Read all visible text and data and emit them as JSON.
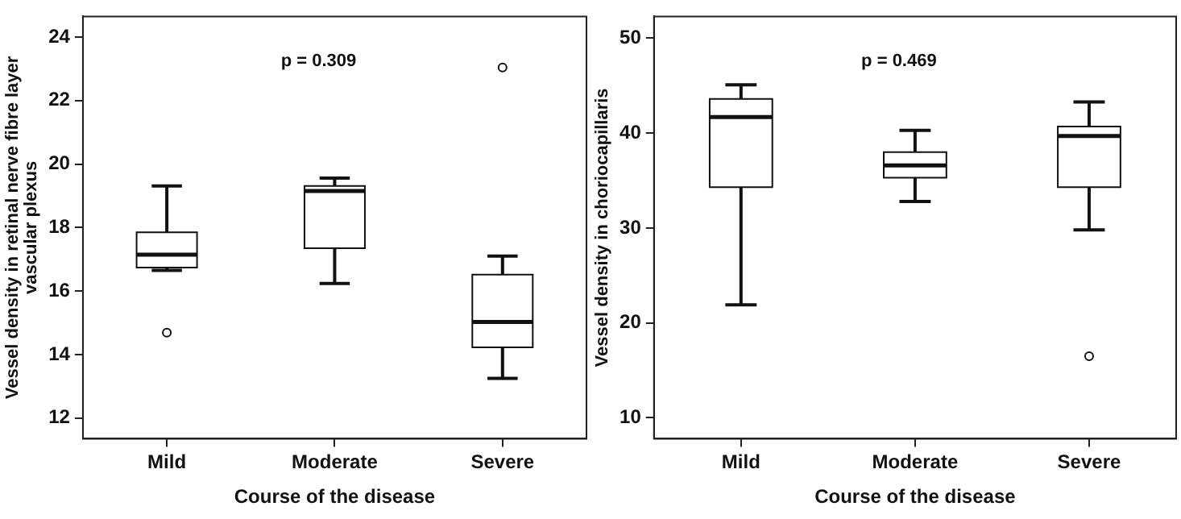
{
  "chart_data": [
    {
      "type": "box",
      "categories": [
        "Mild",
        "Moderate",
        "Severe"
      ],
      "xlabel": "Course of the disease",
      "ylabel": "Vessel density in retinal nerve fibre layer vascular plexus",
      "annotations": [
        "p = 0.309"
      ],
      "ylim": [
        11.35,
        24.65
      ],
      "yticks": [
        12,
        14,
        16,
        18,
        20,
        22,
        24
      ],
      "grid": false,
      "legend": false,
      "boxes": [
        {
          "low": 16.65,
          "q1": 16.74,
          "median": 17.15,
          "q3": 17.85,
          "high": 19.31,
          "outliers": [
            14.69
          ]
        },
        {
          "low": 16.24,
          "q1": 17.35,
          "median": 19.15,
          "q3": 19.31,
          "high": 19.56
        },
        {
          "low": 13.25,
          "q1": 14.23,
          "median": 15.03,
          "q3": 16.52,
          "high": 17.1,
          "outliers": [
            23.04
          ]
        }
      ]
    },
    {
      "type": "box",
      "categories": [
        "Mild",
        "Moderate",
        "Severe"
      ],
      "xlabel": "Course of the disease",
      "ylabel": "Vessel density in choriocapillaris",
      "annotations": [
        "p = 0.469"
      ],
      "ylim": [
        7.8,
        52.3
      ],
      "yticks": [
        10,
        20,
        30,
        40,
        50
      ],
      "grid": false,
      "legend": false,
      "boxes": [
        {
          "low": 21.9,
          "q1": 34.3,
          "median": 41.7,
          "q3": 43.6,
          "high": 45.1
        },
        {
          "low": 32.8,
          "q1": 35.3,
          "median": 36.6,
          "q3": 38.0,
          "high": 40.3
        },
        {
          "low": 29.8,
          "q1": 34.3,
          "median": 39.7,
          "q3": 40.7,
          "high": 43.3,
          "outliers": [
            16.5
          ]
        }
      ]
    }
  ]
}
